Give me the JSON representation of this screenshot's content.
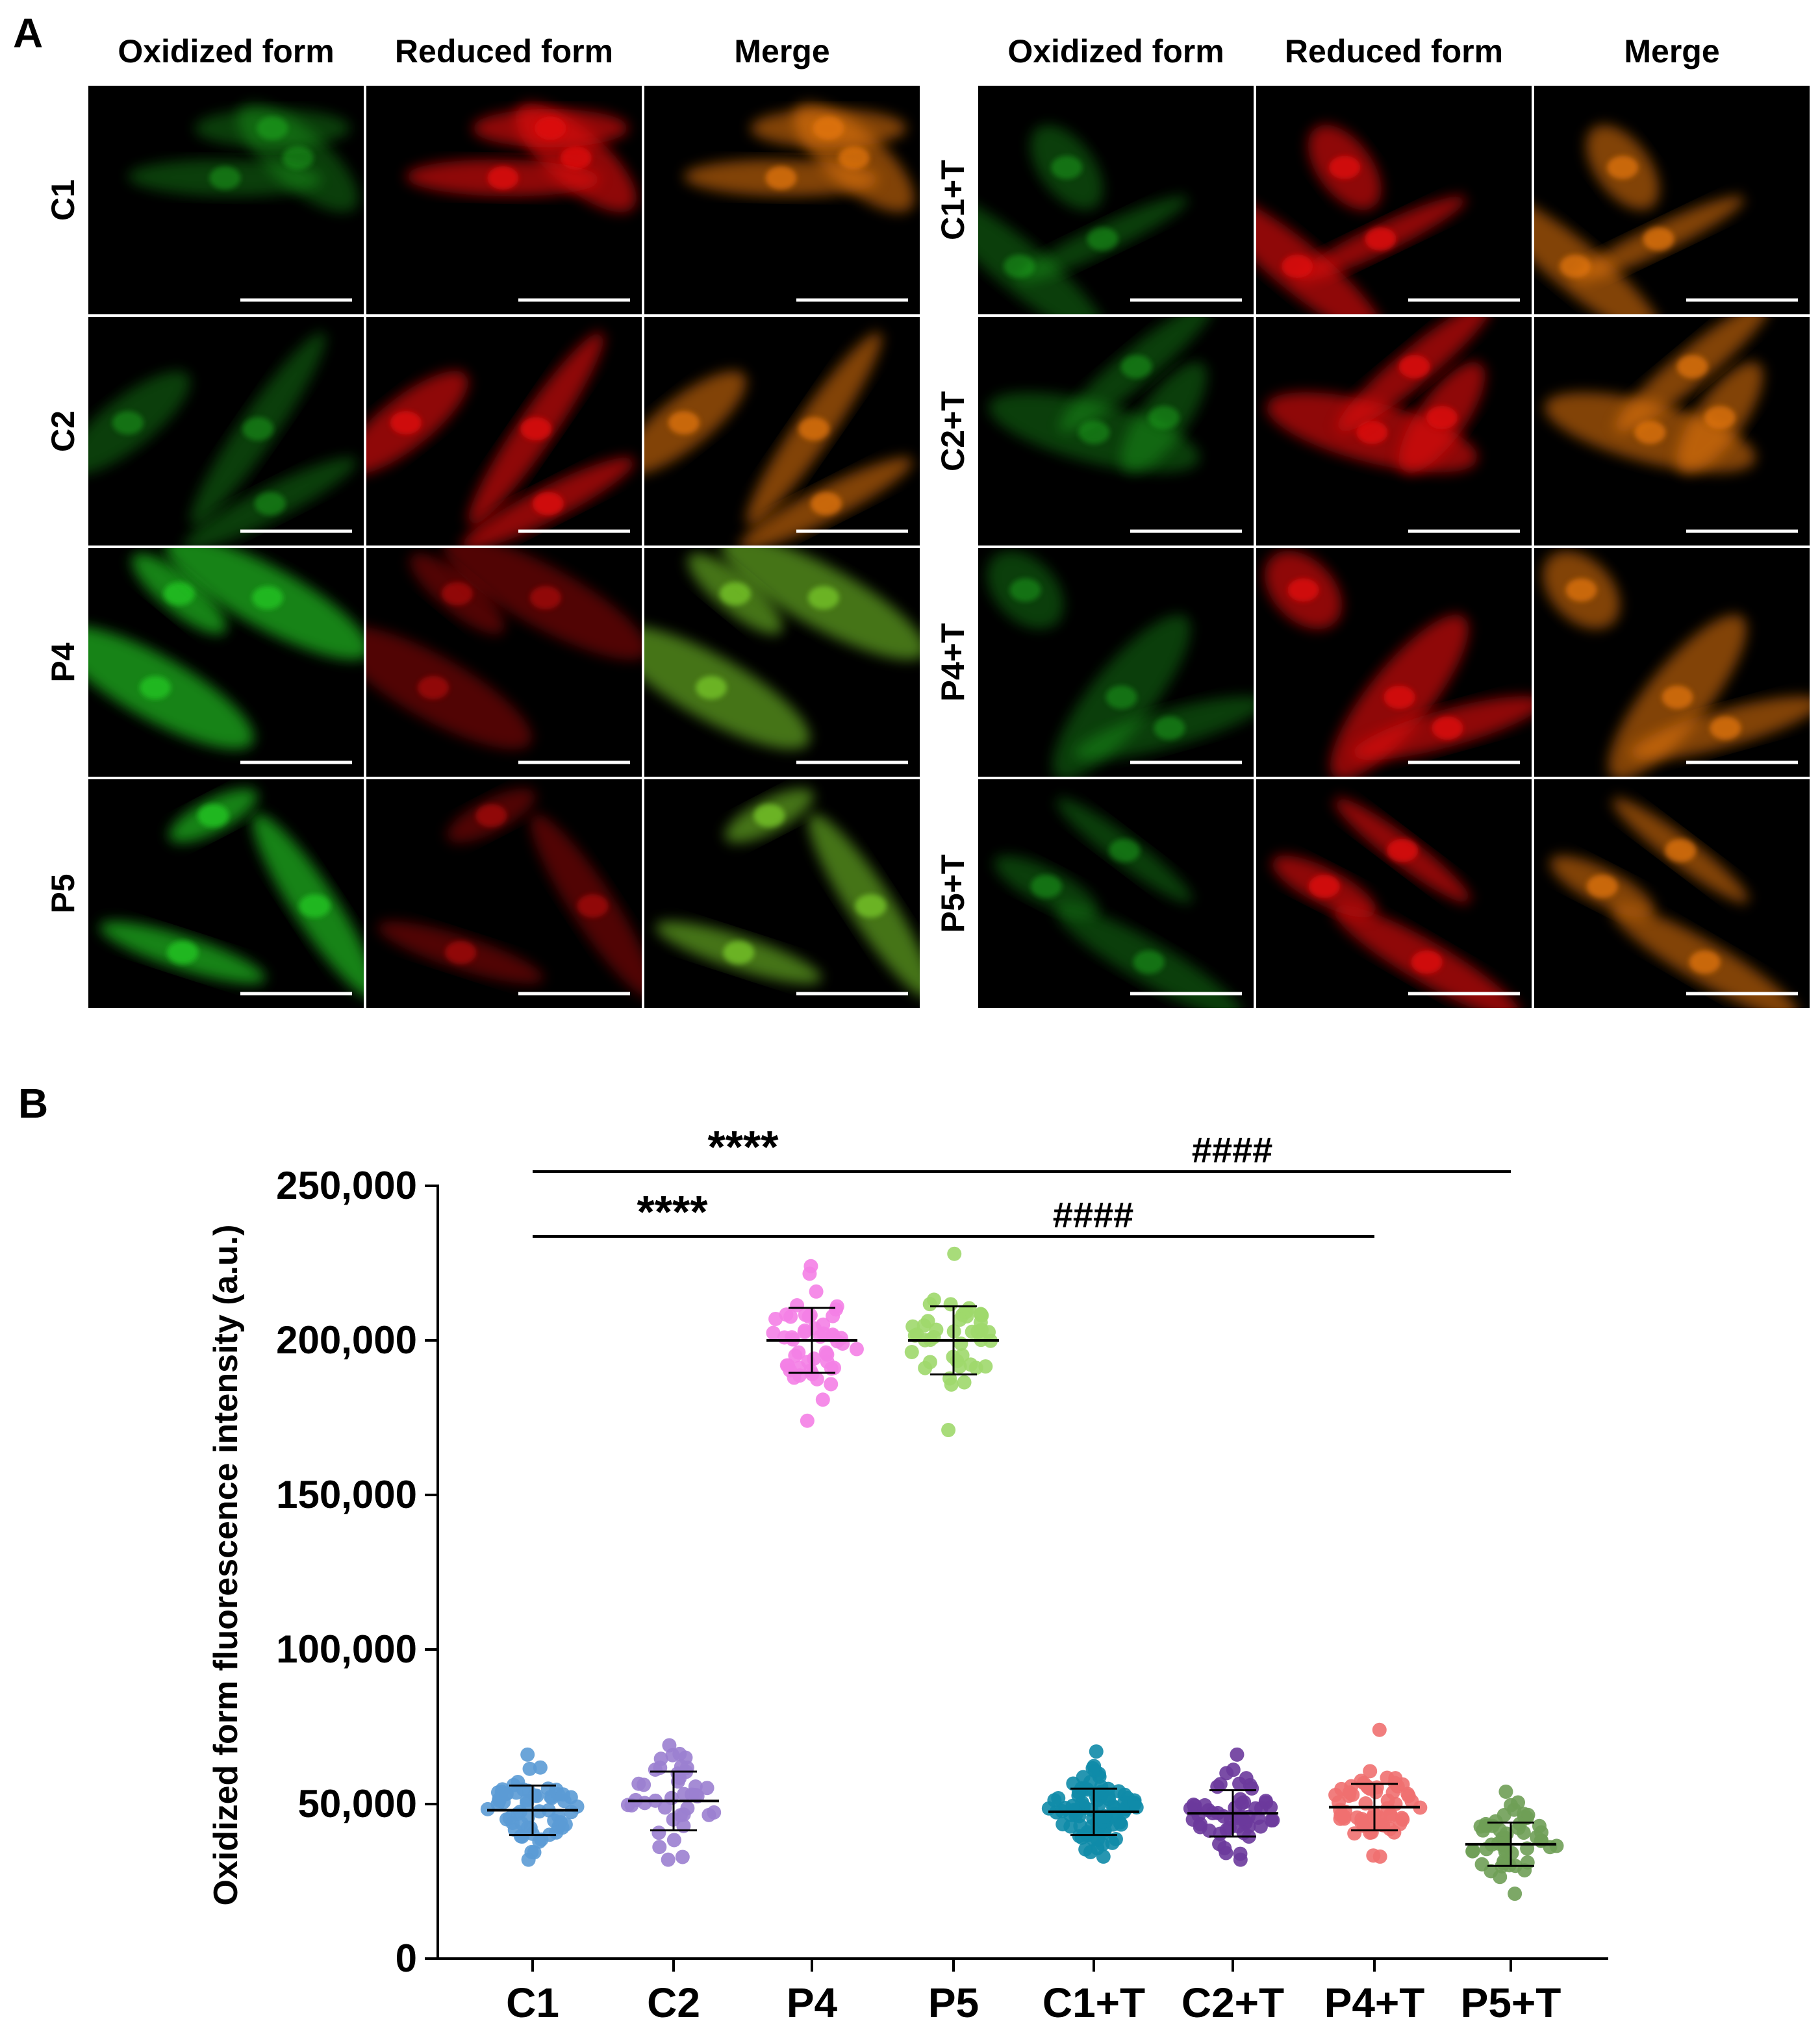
{
  "panel_a": {
    "label": "A",
    "column_headers": [
      "Oxidized form",
      "Reduced form",
      "Merge"
    ],
    "left_rows": [
      "C1",
      "C2",
      "P4",
      "P5"
    ],
    "right_rows": [
      "C1+T",
      "C2+T",
      "P4+T",
      "P5+T"
    ],
    "colors": {
      "oxidized": "#22c122",
      "reduced": "#e01010",
      "merge": "#e8780f"
    }
  },
  "panel_b": {
    "label": "B"
  },
  "chart_data": {
    "type": "scatter",
    "title": "",
    "xlabel": "",
    "ylabel": "Oxidized form fluorescence intensity (a.u.)",
    "ylim": [
      0,
      250000
    ],
    "yticks": [
      0,
      50000,
      100000,
      150000,
      200000,
      250000
    ],
    "ytick_labels": [
      "0",
      "50,000",
      "100,000",
      "150,000",
      "200,000",
      "250,000"
    ],
    "categories": [
      "C1",
      "C2",
      "P4",
      "P5",
      "C1+T",
      "C2+T",
      "P4+T",
      "P5+T"
    ],
    "series": [
      {
        "category": "C1",
        "color": "#5b9bd5",
        "mean": 48000,
        "sd": 8000,
        "min": 32000,
        "max": 66000,
        "n": 60
      },
      {
        "category": "C2",
        "color": "#9b7fd0",
        "mean": 51000,
        "sd": 9500,
        "min": 32000,
        "max": 69000,
        "n": 40
      },
      {
        "category": "P4",
        "color": "#f47fe6",
        "mean": 200000,
        "sd": 10500,
        "min": 174000,
        "max": 224000,
        "n": 50
      },
      {
        "category": "P5",
        "color": "#9fd86b",
        "mean": 200000,
        "sd": 11000,
        "min": 171000,
        "max": 228000,
        "n": 45
      },
      {
        "category": "C1+T",
        "color": "#0f8ba8",
        "mean": 47500,
        "sd": 7500,
        "min": 33000,
        "max": 67000,
        "n": 90
      },
      {
        "category": "C2+T",
        "color": "#6b3a9c",
        "mean": 47000,
        "sd": 7500,
        "min": 32000,
        "max": 66000,
        "n": 55
      },
      {
        "category": "P4+T",
        "color": "#f07070",
        "mean": 49000,
        "sd": 7500,
        "min": 33000,
        "max": 74000,
        "n": 60
      },
      {
        "category": "P5+T",
        "color": "#6f9e57",
        "mean": 37000,
        "sd": 7000,
        "min": 21000,
        "max": 54000,
        "n": 50
      }
    ],
    "significance": [
      {
        "from": "C1",
        "to": "P4",
        "label": "****"
      },
      {
        "from": "C1",
        "to": "P5",
        "label": "****"
      },
      {
        "from": "P4",
        "to": "P4+T",
        "label": "####"
      },
      {
        "from": "P5",
        "to": "P5+T",
        "label": "####"
      }
    ]
  }
}
